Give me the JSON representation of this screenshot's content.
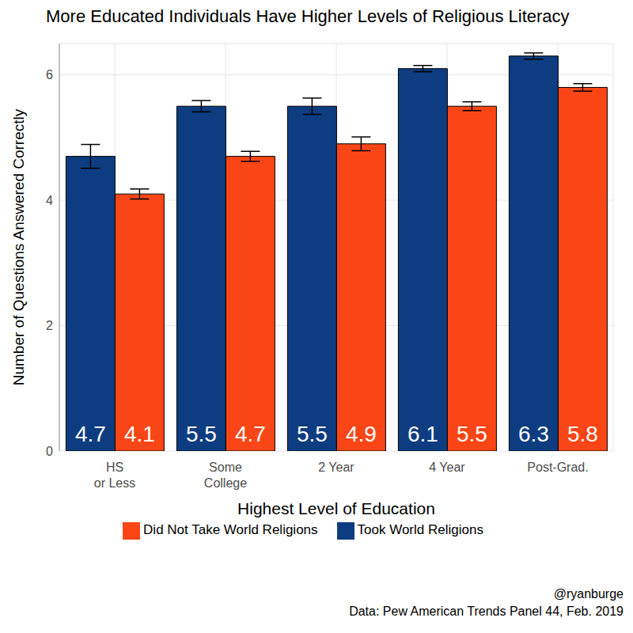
{
  "chart_data": {
    "type": "bar",
    "title": "More Educated Individuals Have Higher Levels of Religious Literacy",
    "x_label": "Highest Level of Education",
    "y_label": "Number of Questions Answered Correctly",
    "categories": [
      "HS\nor Less",
      "Some\nCollege",
      "2 Year",
      "4 Year",
      "Post-Grad."
    ],
    "series": [
      {
        "name": "Took World Religions",
        "color": "#0d3d80",
        "values": [
          4.7,
          5.5,
          5.5,
          6.1,
          6.3
        ],
        "errors": [
          0.19,
          0.09,
          0.13,
          0.05,
          0.05
        ]
      },
      {
        "name": "Did Not Take World Religions",
        "color": "#fa4616",
        "values": [
          4.1,
          4.7,
          4.9,
          5.5,
          5.8
        ],
        "errors": [
          0.08,
          0.08,
          0.11,
          0.07,
          0.06
        ]
      }
    ],
    "ylim": [
      0,
      6.5
    ],
    "yticks": [
      0,
      2,
      4,
      6
    ],
    "grid": true,
    "data_labels": true,
    "legend": "bottom",
    "caption": [
      "@ryanburge",
      "Data: Pew American Trends Panel 44, Feb. 2019"
    ]
  }
}
